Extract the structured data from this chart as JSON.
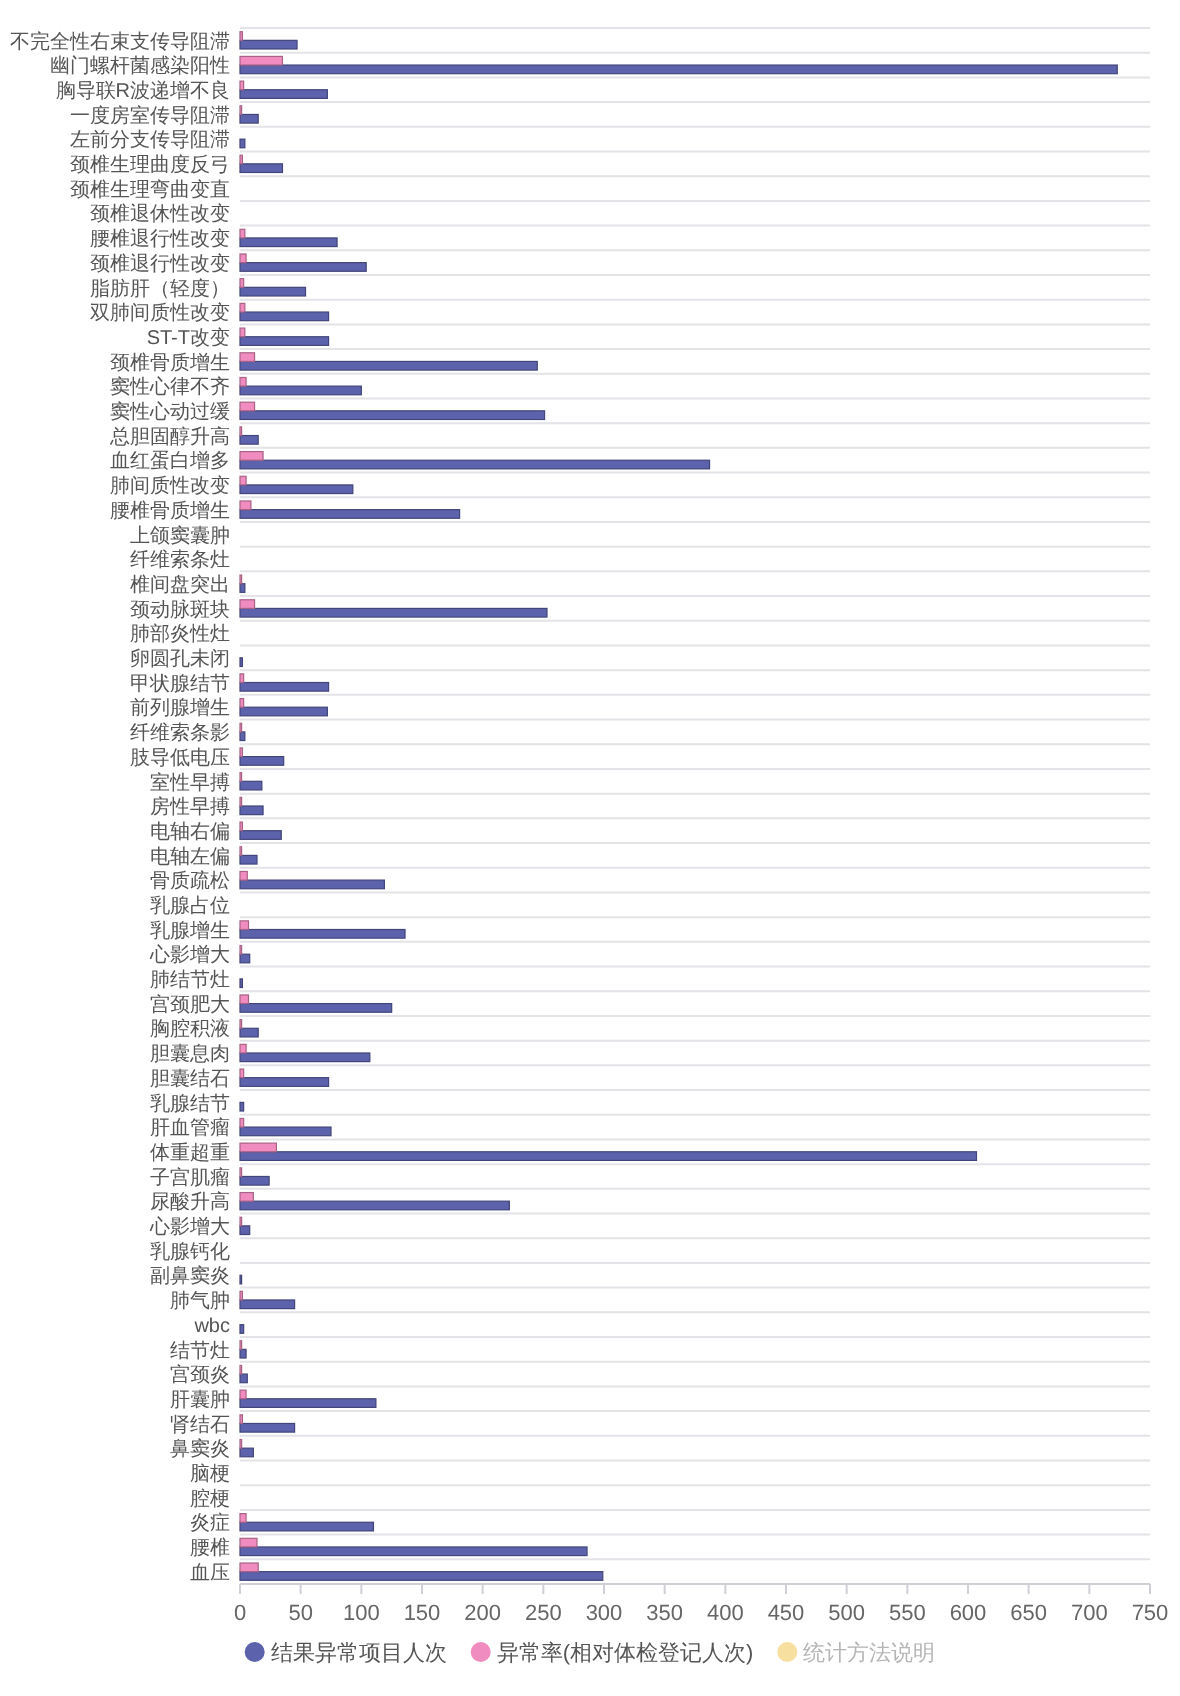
{
  "chart_data": {
    "type": "bar",
    "orientation": "horizontal",
    "categories": [
      "不完全性右束支传导阻滞",
      "幽门螺杆菌感染阳性",
      "胸导联R波递增不良",
      "一度房室传导阻滞",
      "左前分支传导阻滞",
      "颈椎生理曲度反弓",
      "颈椎生理弯曲变直",
      "颈椎退休性改变",
      "腰椎退行性改变",
      "颈椎退行性改变",
      "脂肪肝（轻度）",
      "双肺间质性改变",
      "ST-T改变",
      "颈椎骨质增生",
      "窦性心律不齐",
      "窦性心动过缓",
      "总胆固醇升高",
      "血红蛋白增多",
      "肺间质性改变",
      "腰椎骨质增生",
      "上颌窦囊肿",
      "纤维索条灶",
      "椎间盘突出",
      "颈动脉斑块",
      "肺部炎性灶",
      "卵圆孔未闭",
      "甲状腺结节",
      "前列腺增生",
      "纤维索条影",
      "肢导低电压",
      "室性早搏",
      "房性早搏",
      "电轴右偏",
      "电轴左偏",
      "骨质疏松",
      "乳腺占位",
      "乳腺增生",
      "心影增大",
      "肺结节灶",
      "宫颈肥大",
      "胸腔积液",
      "胆囊息肉",
      "胆囊结石",
      "乳腺结节",
      "肝血管瘤",
      "体重超重",
      "子宫肌瘤",
      "尿酸升高",
      "心影增大",
      "乳腺钙化",
      "副鼻窦炎",
      "肺气肿",
      "wbc",
      "结节灶",
      "宫颈炎",
      "肝囊肿",
      "肾结石",
      "鼻窦炎",
      "脑梗",
      "腔梗",
      "炎症",
      "腰椎",
      "血压"
    ],
    "series": [
      {
        "name": "结果异常项目人次",
        "color": "#5d62ad",
        "values": [
          47,
          723,
          72,
          15,
          4,
          35,
          null,
          null,
          80,
          104,
          54,
          73,
          73,
          245,
          100,
          251,
          15,
          387,
          93,
          181,
          null,
          null,
          4,
          253,
          null,
          2,
          73,
          72,
          4,
          36,
          18,
          19,
          34,
          14,
          119,
          null,
          136,
          8,
          2,
          125,
          15,
          107,
          73,
          3,
          75,
          607,
          24,
          222,
          8,
          null,
          1,
          45,
          3,
          5,
          6,
          112,
          45,
          11,
          null,
          null,
          110,
          286,
          299
        ]
      },
      {
        "name": "异常率(相对体检登记人次)",
        "color": "#f08cc0",
        "values": [
          2,
          35,
          3,
          1,
          null,
          2,
          null,
          null,
          4,
          5,
          3,
          4,
          4,
          12,
          5,
          12,
          1,
          19,
          5,
          9,
          null,
          null,
          1,
          12,
          null,
          null,
          3,
          3,
          1,
          2,
          1,
          1,
          2,
          1,
          6,
          null,
          7,
          1,
          null,
          7,
          1,
          5,
          3,
          null,
          3,
          30,
          1,
          11,
          1,
          null,
          null,
          2,
          null,
          1,
          1,
          5,
          2,
          1,
          null,
          null,
          5,
          14,
          15
        ]
      },
      {
        "name": "统计方法说明",
        "color": "#f7dfa0",
        "values": [
          null,
          null,
          null,
          null,
          null,
          null,
          null,
          null,
          null,
          null,
          null,
          null,
          null,
          null,
          null,
          null,
          null,
          null,
          null,
          null,
          null,
          null,
          null,
          null,
          null,
          null,
          null,
          null,
          null,
          null,
          null,
          null,
          null,
          null,
          null,
          null,
          null,
          null,
          null,
          null,
          null,
          null,
          null,
          null,
          null,
          null,
          null,
          null,
          null,
          null,
          null,
          null,
          null,
          null,
          null,
          null,
          null,
          null,
          null,
          null,
          null,
          null,
          null
        ]
      }
    ],
    "xlim": [
      0,
      750
    ],
    "xticks": [
      0,
      50,
      100,
      150,
      200,
      250,
      300,
      350,
      400,
      450,
      500,
      550,
      600,
      650,
      700,
      750
    ],
    "grid": "y",
    "legend": "bottom"
  }
}
